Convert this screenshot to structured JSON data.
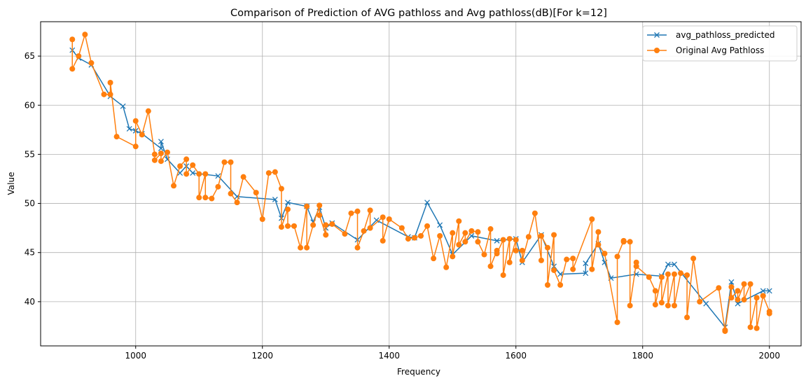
{
  "chart_data": {
    "type": "line",
    "title": "Comparison of Prediction of AVG pathloss and Avg pathloss(dB)[For k=12]",
    "xlabel": "Frequency",
    "ylabel": "Value",
    "xlim": [
      850,
      2050
    ],
    "ylim": [
      35.5,
      68.5
    ],
    "xticks": [
      1000,
      1200,
      1400,
      1600,
      1800,
      2000
    ],
    "yticks": [
      40,
      45,
      50,
      55,
      60,
      65
    ],
    "grid": true,
    "legend_position": "top-right",
    "series": [
      {
        "name": "avg_pathloss_predicted",
        "color": "#1f77b4",
        "marker": "x",
        "x": [
          900,
          910,
          930,
          960,
          980,
          990,
          1000,
          1010,
          1040,
          1040,
          1050,
          1070,
          1080,
          1090,
          1130,
          1160,
          1220,
          1230,
          1240,
          1270,
          1280,
          1290,
          1300,
          1310,
          1350,
          1380,
          1430,
          1440,
          1460,
          1480,
          1500,
          1530,
          1570,
          1600,
          1610,
          1640,
          1660,
          1670,
          1710,
          1710,
          1730,
          1740,
          1750,
          1790,
          1830,
          1840,
          1850,
          1900,
          1930,
          1940,
          1950,
          1990,
          2000
        ],
        "y": [
          65.6,
          64.8,
          64.1,
          60.9,
          59.9,
          57.6,
          57.4,
          57.1,
          55.6,
          56.3,
          54.5,
          53.1,
          53.8,
          53.1,
          52.8,
          50.7,
          50.4,
          48.5,
          50.1,
          49.7,
          48.1,
          49.6,
          47.5,
          48.0,
          46.3,
          48.3,
          46.6,
          46.5,
          50.1,
          47.8,
          44.8,
          46.7,
          46.2,
          46.4,
          44.0,
          46.8,
          43.6,
          42.8,
          42.9,
          43.9,
          45.9,
          44.0,
          42.4,
          42.8,
          42.6,
          43.8,
          43.8,
          39.8,
          37.4,
          42.0,
          39.8,
          41.1,
          41.1
        ]
      },
      {
        "name": "Original Avg Pathloss",
        "color": "#ff7f0e",
        "marker": "o",
        "x": [
          900,
          900,
          910,
          920,
          930,
          950,
          960,
          960,
          970,
          1000,
          1000,
          1010,
          1020,
          1030,
          1030,
          1040,
          1040,
          1050,
          1060,
          1070,
          1080,
          1080,
          1090,
          1100,
          1100,
          1110,
          1110,
          1120,
          1130,
          1140,
          1150,
          1150,
          1160,
          1170,
          1190,
          1200,
          1210,
          1220,
          1230,
          1230,
          1240,
          1240,
          1250,
          1260,
          1270,
          1270,
          1280,
          1290,
          1290,
          1300,
          1300,
          1310,
          1330,
          1340,
          1350,
          1350,
          1360,
          1370,
          1370,
          1390,
          1390,
          1400,
          1420,
          1430,
          1440,
          1450,
          1460,
          1470,
          1480,
          1490,
          1500,
          1500,
          1510,
          1510,
          1520,
          1520,
          1530,
          1540,
          1540,
          1550,
          1560,
          1560,
          1570,
          1570,
          1580,
          1580,
          1590,
          1590,
          1600,
          1600,
          1610,
          1610,
          1620,
          1630,
          1640,
          1640,
          1650,
          1650,
          1660,
          1660,
          1670,
          1680,
          1690,
          1690,
          1720,
          1720,
          1730,
          1730,
          1740,
          1760,
          1760,
          1770,
          1770,
          1780,
          1780,
          1790,
          1790,
          1810,
          1820,
          1820,
          1830,
          1830,
          1840,
          1840,
          1850,
          1850,
          1860,
          1870,
          1870,
          1880,
          1890,
          1920,
          1930,
          1930,
          1940,
          1940,
          1950,
          1950,
          1960,
          1960,
          1970,
          1970,
          1980,
          1980,
          1990,
          1990,
          2000,
          2000
        ],
        "y": [
          66.7,
          63.7,
          65.0,
          67.2,
          64.3,
          61.1,
          61.1,
          62.3,
          56.8,
          55.8,
          58.4,
          57.0,
          59.4,
          55.0,
          54.4,
          55.1,
          54.3,
          55.2,
          51.8,
          53.8,
          54.5,
          53.0,
          53.9,
          53.0,
          50.6,
          53.0,
          50.6,
          50.5,
          51.7,
          54.2,
          54.2,
          51.0,
          50.1,
          52.7,
          51.1,
          48.4,
          53.1,
          53.2,
          51.5,
          47.6,
          49.4,
          47.7,
          47.7,
          45.5,
          49.7,
          45.5,
          47.8,
          49.8,
          48.8,
          46.8,
          47.8,
          47.9,
          46.9,
          49.0,
          49.2,
          45.5,
          47.2,
          49.3,
          47.5,
          48.6,
          46.2,
          48.4,
          47.5,
          46.4,
          46.5,
          46.7,
          47.7,
          44.4,
          46.7,
          43.5,
          47.0,
          44.6,
          48.2,
          45.8,
          47.0,
          46.1,
          47.2,
          47.1,
          46.1,
          44.8,
          47.4,
          43.6,
          45.2,
          44.9,
          46.3,
          42.7,
          46.4,
          44.0,
          46.3,
          45.2,
          45.2,
          44.2,
          46.6,
          49.0,
          44.2,
          46.7,
          45.5,
          41.7,
          46.8,
          43.2,
          41.7,
          44.3,
          44.4,
          43.3,
          48.4,
          43.3,
          47.1,
          45.8,
          44.9,
          37.9,
          44.6,
          46.2,
          46.1,
          46.1,
          39.6,
          44.0,
          43.6,
          42.5,
          41.1,
          39.7,
          42.5,
          39.9,
          42.8,
          39.6,
          42.8,
          39.6,
          42.9,
          42.7,
          38.4,
          44.4,
          40.0,
          41.4,
          37.0,
          37.1,
          41.5,
          40.4,
          41.1,
          40.2,
          41.8,
          40.2,
          41.8,
          37.4,
          40.4,
          37.3,
          40.6,
          40.6,
          39.0,
          38.8
        ]
      }
    ]
  }
}
